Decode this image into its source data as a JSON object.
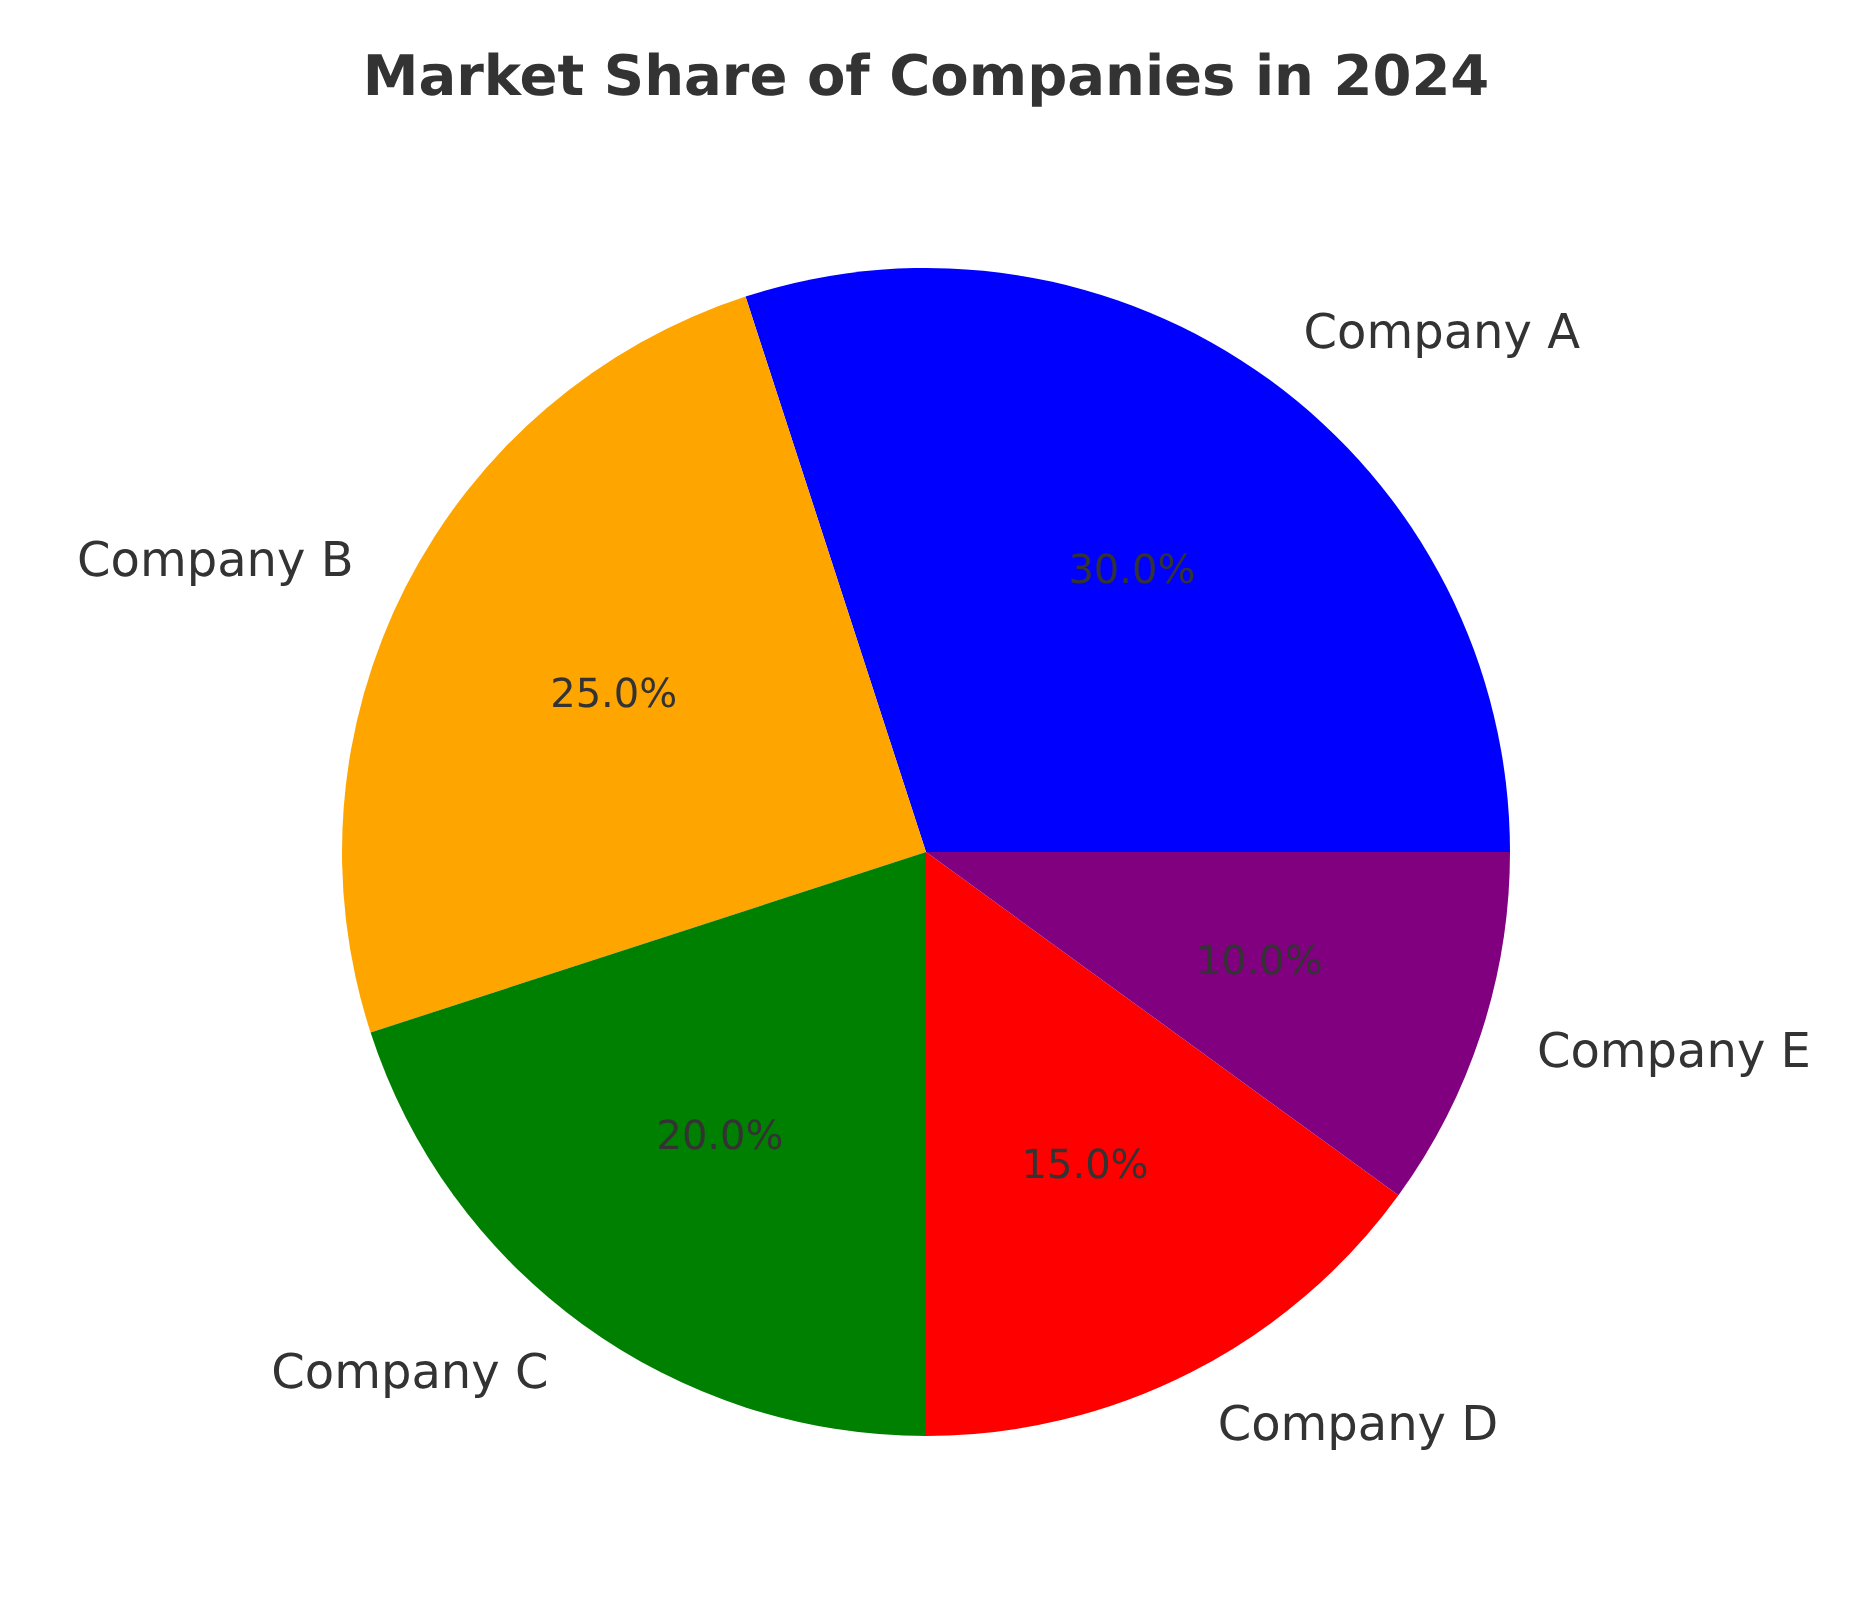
{
  "chart_data": {
    "type": "pie",
    "title": "Market Share of Companies in 2024",
    "categories": [
      "Company A",
      "Company B",
      "Company C",
      "Company D",
      "Company E"
    ],
    "values": [
      30,
      25,
      20,
      15,
      10
    ],
    "colors": [
      "#0000ff",
      "#ffa500",
      "#008000",
      "#ff0000",
      "#800080"
    ],
    "value_labels": [
      "30.0%",
      "25.0%",
      "20.0%",
      "15.0%",
      "10.0%"
    ]
  }
}
